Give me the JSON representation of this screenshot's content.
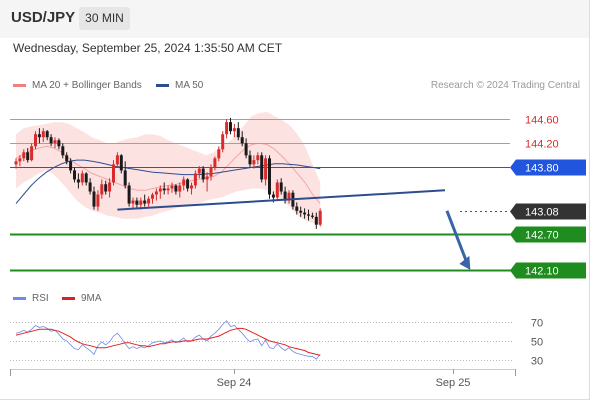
{
  "header": {
    "symbol": "USD/JPY",
    "timeframe": "30 MIN"
  },
  "datetime": "Wednesday, September 25, 2024 1:35:50 AM CET",
  "legend": [
    {
      "label": "MA 20 + Bollinger Bands",
      "color": "#f08080"
    },
    {
      "label": "MA 50",
      "color": "#2e4d8f"
    }
  ],
  "credit": "Research © 2024 Trading Central",
  "rsi_legend": [
    {
      "label": "RSI",
      "color": "#6e8ae6"
    },
    {
      "label": "9MA",
      "color": "#e02020"
    }
  ],
  "colors": {
    "up": "#d92b2b",
    "down": "#1a1a1a",
    "resistance": "#f08080",
    "support": "#1e8c1e",
    "pivot": "#2255dd",
    "last": "#333333",
    "bands_fill": "#fde2e2",
    "ma50": "#2e4d8f",
    "trendline": "#2e4d8f",
    "arrow": "#3a64a8"
  },
  "chart_data": [
    {
      "type": "candlestick",
      "x_labels": [
        "Sep 24",
        "Sep 25"
      ],
      "ylim": [
        141.85,
        145.0
      ],
      "candles": [
        [
          143.85,
          143.95,
          143.78,
          143.9
        ],
        [
          143.9,
          144.0,
          143.82,
          143.95
        ],
        [
          143.95,
          144.1,
          143.9,
          144.05
        ],
        [
          144.05,
          144.12,
          143.88,
          143.92
        ],
        [
          143.92,
          144.2,
          143.9,
          144.15
        ],
        [
          144.15,
          144.4,
          144.1,
          144.35
        ],
        [
          144.35,
          144.45,
          144.2,
          144.3
        ],
        [
          144.3,
          144.45,
          144.22,
          144.4
        ],
        [
          144.4,
          144.42,
          144.25,
          144.3
        ],
        [
          144.3,
          144.35,
          144.15,
          144.2
        ],
        [
          144.2,
          144.3,
          144.12,
          144.25
        ],
        [
          144.25,
          144.28,
          144.1,
          144.15
        ],
        [
          144.15,
          144.2,
          143.95,
          144.0
        ],
        [
          144.0,
          144.05,
          143.85,
          143.9
        ],
        [
          143.9,
          143.95,
          143.7,
          143.75
        ],
        [
          143.75,
          143.8,
          143.55,
          143.6
        ],
        [
          143.6,
          143.7,
          143.45,
          143.55
        ],
        [
          143.55,
          143.75,
          143.5,
          143.7
        ],
        [
          143.7,
          143.72,
          143.5,
          143.55
        ],
        [
          143.55,
          143.62,
          143.35,
          143.4
        ],
        [
          143.4,
          143.48,
          143.1,
          143.15
        ],
        [
          143.15,
          143.42,
          143.08,
          143.35
        ],
        [
          143.35,
          143.6,
          143.28,
          143.52
        ],
        [
          143.52,
          143.58,
          143.35,
          143.4
        ],
        [
          143.4,
          143.62,
          143.3,
          143.55
        ],
        [
          143.55,
          143.92,
          143.5,
          143.85
        ],
        [
          143.85,
          144.05,
          143.8,
          144.0
        ],
        [
          144.0,
          144.02,
          143.7,
          143.75
        ],
        [
          143.75,
          143.9,
          143.45,
          143.5
        ],
        [
          143.5,
          143.55,
          143.15,
          143.2
        ],
        [
          143.2,
          143.3,
          143.1,
          143.25
        ],
        [
          143.25,
          143.3,
          143.12,
          143.18
        ],
        [
          143.18,
          143.3,
          143.1,
          143.25
        ],
        [
          143.25,
          143.35,
          143.15,
          143.2
        ],
        [
          143.2,
          143.32,
          143.15,
          143.28
        ],
        [
          143.28,
          143.38,
          143.2,
          143.35
        ],
        [
          143.35,
          143.45,
          143.25,
          143.4
        ],
        [
          143.4,
          143.5,
          143.28,
          143.45
        ],
        [
          143.45,
          143.55,
          143.35,
          143.42
        ],
        [
          143.42,
          143.5,
          143.35,
          143.45
        ],
        [
          143.45,
          143.55,
          143.38,
          143.5
        ],
        [
          143.5,
          143.52,
          143.35,
          143.4
        ],
        [
          143.4,
          143.55,
          143.3,
          143.5
        ],
        [
          143.5,
          143.65,
          143.42,
          143.6
        ],
        [
          143.6,
          143.62,
          143.4,
          143.45
        ],
        [
          143.45,
          143.55,
          143.35,
          143.5
        ],
        [
          143.5,
          143.75,
          143.45,
          143.7
        ],
        [
          143.7,
          143.82,
          143.62,
          143.78
        ],
        [
          143.78,
          143.82,
          143.55,
          143.6
        ],
        [
          143.6,
          143.72,
          143.4,
          143.65
        ],
        [
          143.65,
          143.85,
          143.58,
          143.8
        ],
        [
          143.8,
          143.98,
          143.75,
          143.95
        ],
        [
          143.95,
          144.15,
          143.9,
          144.1
        ],
        [
          144.1,
          144.4,
          144.05,
          144.35
        ],
        [
          144.35,
          144.6,
          144.28,
          144.55
        ],
        [
          144.55,
          144.62,
          144.35,
          144.4
        ],
        [
          144.4,
          144.52,
          144.3,
          144.45
        ],
        [
          144.45,
          144.55,
          144.25,
          144.3
        ],
        [
          144.3,
          144.4,
          144.15,
          144.2
        ],
        [
          144.2,
          144.28,
          143.95,
          144.0
        ],
        [
          144.0,
          144.08,
          143.8,
          143.85
        ],
        [
          143.85,
          144.0,
          143.78,
          143.92
        ],
        [
          143.92,
          144.05,
          143.85,
          144.0
        ],
        [
          144.0,
          144.05,
          143.55,
          143.6
        ],
        [
          143.6,
          144.0,
          143.5,
          143.95
        ],
        [
          143.95,
          144.0,
          143.28,
          143.35
        ],
        [
          143.35,
          143.4,
          143.22,
          143.3
        ],
        [
          143.3,
          143.6,
          143.25,
          143.55
        ],
        [
          143.55,
          143.62,
          143.35,
          143.4
        ],
        [
          143.4,
          143.48,
          143.2,
          143.25
        ],
        [
          143.25,
          143.42,
          143.2,
          143.38
        ],
        [
          143.38,
          143.42,
          143.1,
          143.15
        ],
        [
          143.15,
          143.22,
          143.02,
          143.08
        ],
        [
          143.08,
          143.15,
          142.98,
          143.05
        ],
        [
          143.05,
          143.12,
          142.95,
          143.02
        ],
        [
          143.02,
          143.1,
          142.92,
          143.0
        ],
        [
          143.0,
          143.05,
          142.95,
          142.98
        ],
        [
          142.98,
          143.05,
          142.78,
          142.85
        ],
        [
          142.85,
          143.12,
          142.82,
          143.08
        ]
      ],
      "bollinger": {
        "upper": [
          144.35,
          144.45,
          144.48,
          144.5,
          144.52,
          144.55,
          144.55,
          144.52,
          144.45,
          144.38,
          144.3,
          144.25,
          144.2,
          144.2,
          144.25,
          144.28,
          144.3,
          144.35,
          144.35,
          144.32,
          144.25,
          144.2,
          144.15,
          144.1,
          144.05,
          144.0,
          144.05,
          144.15,
          144.22,
          144.35,
          144.5,
          144.65,
          144.7,
          144.72,
          144.65,
          144.58,
          144.5,
          144.35,
          144.15,
          143.85,
          143.55
        ],
        "middle": [
          143.95,
          144.02,
          144.08,
          144.12,
          144.15,
          144.12,
          144.05,
          143.95,
          143.85,
          143.78,
          143.7,
          143.65,
          143.6,
          143.55,
          143.5,
          143.45,
          143.42,
          143.42,
          143.45,
          143.48,
          143.5,
          143.52,
          143.55,
          143.58,
          143.6,
          143.62,
          143.65,
          143.72,
          143.85,
          143.98,
          144.1,
          144.18,
          144.2,
          144.18,
          144.1,
          143.98,
          143.85,
          143.7,
          143.55,
          143.35,
          143.2
        ],
        "lower": [
          143.45,
          143.55,
          143.62,
          143.7,
          143.75,
          143.68,
          143.55,
          143.4,
          143.25,
          143.15,
          143.08,
          143.05,
          143.0,
          142.98,
          142.95,
          142.95,
          142.95,
          142.98,
          143.0,
          143.05,
          143.08,
          143.12,
          143.15,
          143.18,
          143.2,
          143.25,
          143.28,
          143.3,
          143.35,
          143.4,
          143.42,
          143.45,
          143.45,
          143.42,
          143.35,
          143.25,
          143.15,
          143.0,
          142.92,
          142.88,
          142.85
        ]
      },
      "ma50": [
        143.2,
        143.35,
        143.5,
        143.62,
        143.72,
        143.8,
        143.86,
        143.9,
        143.92,
        143.92,
        143.9,
        143.88,
        143.85,
        143.82,
        143.8,
        143.78,
        143.76,
        143.74,
        143.72,
        143.71,
        143.7,
        143.69,
        143.68,
        143.68,
        143.68,
        143.69,
        143.7,
        143.72,
        143.74,
        143.76,
        143.78,
        143.8,
        143.82,
        143.84,
        143.86,
        143.86,
        143.85,
        143.84,
        143.82,
        143.8,
        143.78
      ],
      "levels": [
        {
          "label": "144.60",
          "value": 144.6,
          "kind": "resistance"
        },
        {
          "label": "144.20",
          "value": 144.2,
          "kind": "resistance"
        },
        {
          "label": "143.80",
          "value": 143.8,
          "kind": "pivot"
        },
        {
          "label": "143.08",
          "value": 143.08,
          "kind": "last"
        },
        {
          "label": "142.70",
          "value": 142.7,
          "kind": "support"
        },
        {
          "label": "142.10",
          "value": 142.1,
          "kind": "support"
        }
      ],
      "trendline": {
        "from_index": 26,
        "from_value": 143.1,
        "to_index": 110,
        "to_value": 143.42
      },
      "forecast_arrow": {
        "from_index": 110.5,
        "from_value": 143.08,
        "to_index": 116.5,
        "to_value": 142.1
      }
    },
    {
      "type": "line",
      "ylim": [
        25,
        80
      ],
      "y_ticks": [
        "70",
        "50",
        "30"
      ],
      "series": [
        {
          "name": "RSI",
          "values": [
            58,
            59,
            61,
            59,
            62,
            66,
            64,
            65,
            63,
            60,
            61,
            57,
            52,
            50,
            46,
            42,
            41,
            46,
            43,
            40,
            36,
            45,
            49,
            46,
            49,
            55,
            58,
            53,
            47,
            42,
            44,
            42,
            44,
            43,
            45,
            48,
            49,
            50,
            48,
            49,
            51,
            48,
            50,
            53,
            49,
            50,
            54,
            56,
            52,
            50,
            55,
            58,
            62,
            67,
            71,
            65,
            66,
            62,
            58,
            53,
            49,
            51,
            52,
            45,
            51,
            43,
            42,
            47,
            43,
            40,
            43,
            39,
            37,
            36,
            35,
            34,
            34,
            31,
            36
          ]
        },
        {
          "name": "9MA",
          "values": [
            56,
            57,
            58,
            59,
            60,
            61,
            62,
            62,
            62,
            62,
            61,
            60,
            58,
            56,
            54,
            51,
            49,
            47,
            46,
            45,
            44,
            43,
            43,
            43,
            44,
            45,
            46,
            47,
            48,
            48,
            47,
            46,
            45,
            45,
            44,
            45,
            46,
            47,
            47,
            48,
            49,
            49,
            49,
            50,
            50,
            50,
            51,
            52,
            52,
            52,
            53,
            54,
            55,
            57,
            59,
            61,
            62,
            63,
            63,
            62,
            60,
            58,
            56,
            54,
            52,
            50,
            49,
            48,
            47,
            46,
            44,
            43,
            42,
            41,
            40,
            38,
            37,
            36,
            35
          ]
        }
      ]
    }
  ]
}
